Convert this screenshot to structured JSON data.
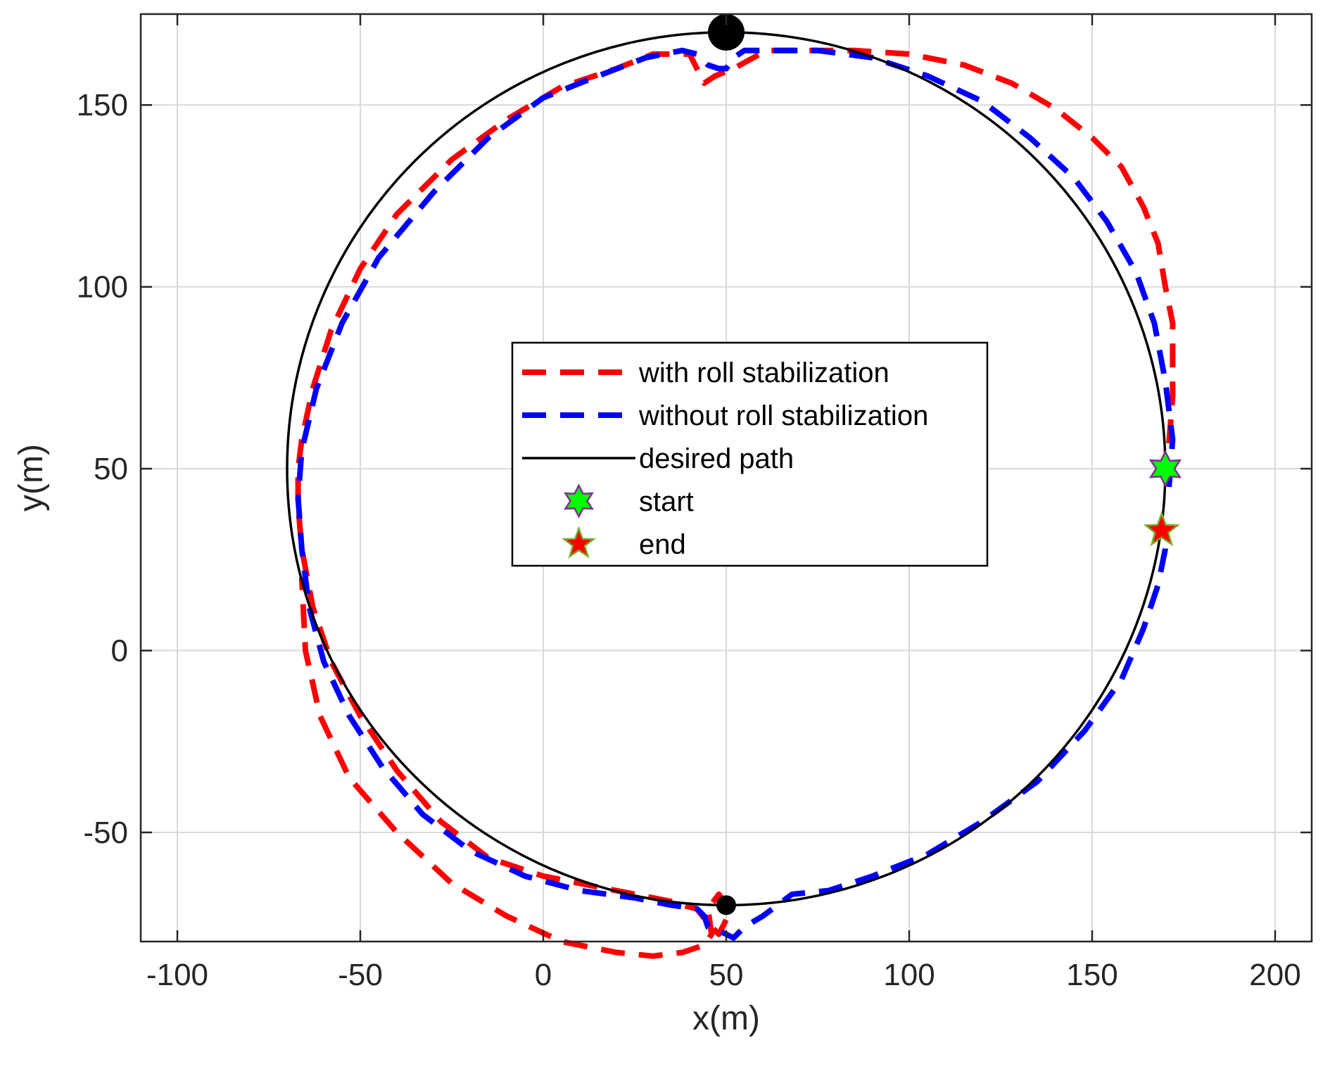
{
  "chart_data": {
    "type": "line",
    "xlabel": "x(m)",
    "ylabel": "y(m)",
    "xlim": [
      -110,
      210
    ],
    "ylim": [
      -80,
      175
    ],
    "xticks": [
      -100,
      -50,
      0,
      50,
      100,
      150,
      200
    ],
    "yticks": [
      -50,
      0,
      50,
      100,
      150
    ],
    "xtick_labels": [
      "-100",
      "-50",
      "0",
      "50",
      "100",
      "150",
      "200"
    ],
    "ytick_labels": [
      "-50",
      "0",
      "50",
      "100",
      "150"
    ],
    "grid": true,
    "legend": {
      "placement": "center-right"
    },
    "colors": {
      "with_roll": "#ff0000",
      "without_roll": "#0000ff",
      "desired": "#000000",
      "start_fill": "#00ff00",
      "start_edge": "#7e2f8e",
      "end_fill": "#ff0000",
      "end_edge": "#77ac30",
      "grid": "#d9d9d9"
    },
    "series": [
      {
        "name": "with roll stabilization",
        "style": "dashed",
        "x": [
          171,
          172,
          172,
          170,
          168,
          164,
          158,
          150,
          140,
          128,
          115,
          100,
          85,
          70,
          61,
          52,
          47,
          44,
          40,
          30,
          20,
          5,
          -10,
          -25,
          -40,
          -50,
          -58,
          -63,
          -66,
          -67,
          -67,
          -66,
          -63,
          -58,
          -50,
          -40,
          -28,
          -15,
          0,
          15,
          25,
          35,
          38,
          42,
          45,
          48,
          50,
          50,
          48,
          45,
          46,
          44,
          38,
          30,
          20,
          5,
          -10,
          -25,
          -40,
          -53,
          -61,
          -65,
          -66
        ],
        "y": [
          57,
          70,
          90,
          100,
          112,
          122,
          133,
          141,
          149,
          156,
          161,
          164,
          165,
          165,
          165,
          160,
          158,
          156,
          164,
          164,
          160,
          155,
          146,
          135,
          120,
          105,
          88,
          72,
          58,
          50,
          40,
          28,
          12,
          -3,
          -18,
          -33,
          -47,
          -57,
          -62,
          -65,
          -67,
          -69,
          -70,
          -71,
          -75,
          -78,
          -74,
          -70,
          -67,
          -71,
          -78,
          -81,
          -83,
          -84,
          -83,
          -80,
          -73,
          -64,
          -50,
          -35,
          -18,
          0,
          20
        ],
        "x_note": "",
        "y_note": ""
      },
      {
        "name": "without roll stabilization",
        "style": "dashed",
        "x": [
          171,
          172,
          170,
          167,
          162,
          154,
          145,
          133,
          120,
          105,
          90,
          75,
          62,
          55,
          52,
          50,
          48,
          45,
          42,
          38,
          28,
          15,
          0,
          -15,
          -30,
          -45,
          -55,
          -62,
          -66,
          -67,
          -66,
          -64,
          -60,
          -53,
          -44,
          -33,
          -20,
          -5,
          10,
          25,
          35,
          42,
          44,
          45,
          48,
          50,
          52,
          55,
          60,
          68,
          78,
          90,
          105,
          120,
          135,
          148,
          158,
          164,
          168,
          170,
          170
        ],
        "y": [
          45,
          58,
          74,
          90,
          104,
          118,
          130,
          141,
          151,
          158,
          163,
          165,
          165,
          165,
          163,
          160,
          160,
          161,
          164,
          165,
          163,
          158,
          152,
          141,
          126,
          108,
          90,
          72,
          55,
          42,
          28,
          12,
          -3,
          -18,
          -32,
          -45,
          -55,
          -62,
          -66,
          -68,
          -70,
          -71,
          -73,
          -76,
          -77,
          -78,
          -79,
          -76,
          -73,
          -67,
          -66,
          -62,
          -56,
          -47,
          -36,
          -22,
          -8,
          6,
          18,
          28,
          33
        ]
      },
      {
        "name": "desired path",
        "style": "solid",
        "shape": "circle",
        "center": [
          50,
          50
        ],
        "radius": 120
      }
    ],
    "markers": [
      {
        "name": "start",
        "shape": "hexagram",
        "x": 170,
        "y": 50
      },
      {
        "name": "end",
        "shape": "pentagram",
        "x": 169,
        "y": 33
      },
      {
        "name": "",
        "shape": "dot-large",
        "x": 50,
        "y": 170
      },
      {
        "name": "",
        "shape": "dot-small",
        "x": 50,
        "y": -70
      }
    ],
    "legend_entries": [
      {
        "label": "with roll stabilization",
        "kind": "dashed-red"
      },
      {
        "label": "without roll stabilization",
        "kind": "dashed-blue"
      },
      {
        "label": "desired path",
        "kind": "solid-black"
      },
      {
        "label": "start",
        "kind": "hexagram-green"
      },
      {
        "label": "end",
        "kind": "pentagram-red"
      }
    ]
  }
}
